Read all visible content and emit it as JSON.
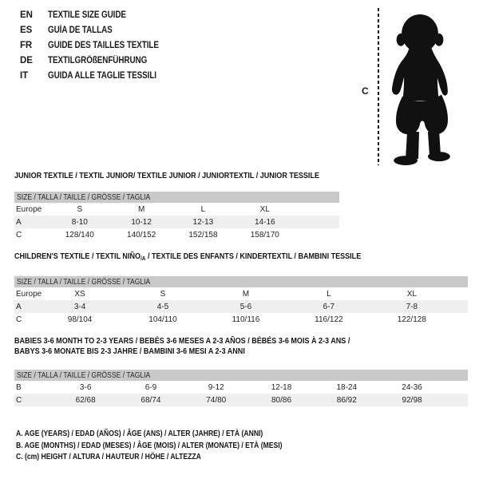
{
  "colors": {
    "background": "#ffffff",
    "header_bar_gray": "#c8c8c8",
    "stripe_row_gray": "#efefef",
    "text_black": "#1a1a1a"
  },
  "language_guide": {
    "items": [
      {
        "code": "EN",
        "label": "TEXTILE SIZE GUIDE"
      },
      {
        "code": "ES",
        "label": "GUÍA DE TALLAS"
      },
      {
        "code": "FR",
        "label": "GUIDE DES TAILLES TEXTILE"
      },
      {
        "code": "DE",
        "label": "TEXTILGRÖßENFÜHRUNG"
      },
      {
        "code": "IT",
        "label": "GUIDA ALLE TAGLIE TESSILI"
      }
    ]
  },
  "figure": {
    "measure_label": "C",
    "image": "baby-toddler-silhouette"
  },
  "tables": [
    {
      "id": "junior",
      "title": "JUNIOR TEXTILE / TEXTIL JUNIOR/ TEXTILE JUNIOR / JUNIORTEXTIL / JUNIOR TESSILE",
      "size_header": "SIZE / TALLA / TAILLE / GRÖSSE / TAGLIA",
      "rows": [
        [
          "Europe",
          "S",
          "M",
          "L",
          "XL"
        ],
        [
          "A",
          "8-10",
          "10-12",
          "12-13",
          "14-16"
        ],
        [
          "C",
          "128/140",
          "140/152",
          "152/158",
          "158/170"
        ]
      ]
    },
    {
      "id": "children",
      "title_prefix": "CHILDREN'S TEXTILE / TEXTIL NIÑO",
      "title_sub": "/A",
      "title_suffix": " / TEXTILE DES ENFANTS / KINDERTEXTIL / BAMBINI TESSILE",
      "size_header": "SIZE / TALLA / TAILLE / GRÖSSE / TAGLIA",
      "rows": [
        [
          "Europe",
          "XS",
          "S",
          "M",
          "L",
          "XL"
        ],
        [
          "A",
          "3-4",
          "4-5",
          "5-6",
          "6-7",
          "7-8"
        ],
        [
          "C",
          "98/104",
          "104/110",
          "110/116",
          "116/122",
          "122/128"
        ]
      ]
    },
    {
      "id": "babies",
      "title_line1": "BABIES 3-6 MONTH TO 2-3 YEARS / BEBÉS 3-6 MESES A 2-3 AÑOS / BÉBÉS 3-6 MOIS À 2-3 ANS /",
      "title_line2": "BABYS 3-6 MONATE BIS 2-3 JAHRE / BAMBINI 3-6 MESI A 2-3 ANNI",
      "size_header": "SIZE / TALLA / TAILLE / GRÖSSE / TAGLIA",
      "rows": [
        [
          "B",
          "3-6",
          "6-9",
          "9-12",
          "12-18",
          "18-24",
          "24-36"
        ],
        [
          "C",
          "62/68",
          "68/74",
          "74/80",
          "80/86",
          "86/92",
          "92/98"
        ]
      ]
    }
  ],
  "legend": {
    "lines": [
      "A. AGE (YEARS) / EDAD (AÑOS) / ÂGE (ANS) / ALTER (JAHRE) / ETÀ (ANNI)",
      "B. AGE (MONTHS) / EDAD (MESES) / ÂGE (MOIS) / ALTER (MONATE) / ETÀ (MESI)",
      "C. (cm) HEIGHT / ALTURA / HAUTEUR / HÖHE / ALTEZZA"
    ]
  }
}
